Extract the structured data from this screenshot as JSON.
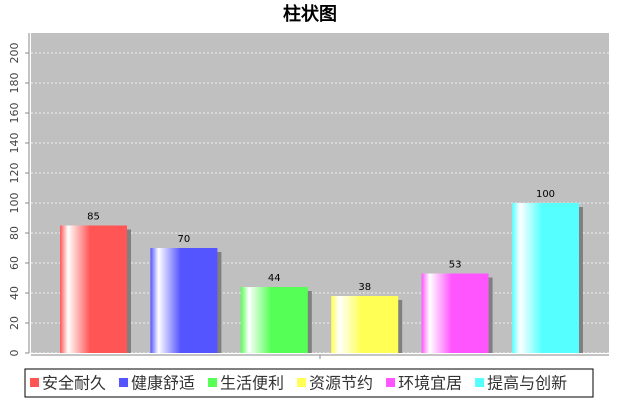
{
  "chart_data": {
    "type": "bar",
    "title": "柱状图",
    "categories": [
      null
    ],
    "series": [
      {
        "name": "安全耐久",
        "color": "#ff5555",
        "values": [
          85
        ]
      },
      {
        "name": "健康舒适",
        "color": "#5555ff",
        "values": [
          70
        ]
      },
      {
        "name": "生活便利",
        "color": "#55ff55",
        "values": [
          44
        ]
      },
      {
        "name": "资源节约",
        "color": "#ffff55",
        "values": [
          38
        ]
      },
      {
        "name": "环境宜居",
        "color": "#ff55ff",
        "values": [
          53
        ]
      },
      {
        "name": "提高与创新",
        "color": "#55ffff",
        "values": [
          100
        ]
      }
    ],
    "ylim": [
      0,
      210
    ],
    "yticks": [
      0,
      20,
      40,
      60,
      80,
      100,
      120,
      140,
      160,
      180,
      200
    ],
    "grid": true,
    "legend": "bottom"
  }
}
